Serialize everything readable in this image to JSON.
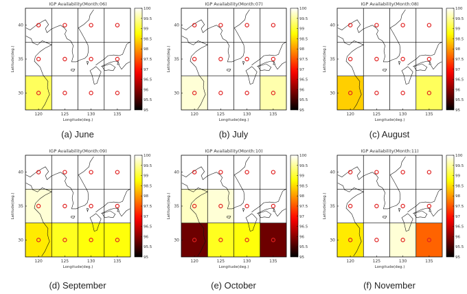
{
  "colorbar": {
    "ticks": [
      "100",
      "99.5",
      "99",
      "98.5",
      "98",
      "97.5",
      "97",
      "96.5",
      "96",
      "95.5",
      "95"
    ],
    "range": [
      95,
      100
    ],
    "colormap": "hot"
  },
  "axes": {
    "xlabel": "Longitude(deg.)",
    "ylabel": "Latitude(deg.)",
    "xticks": [
      120,
      125,
      130,
      135
    ],
    "yticks": [
      40,
      35,
      30
    ]
  },
  "marker_color": "#e02020",
  "chart_data": [
    {
      "type": "heatmap",
      "title": "IGP Availability(Month:06)",
      "caption": "(a)  June",
      "x": [
        120,
        125,
        130,
        135
      ],
      "y": [
        40,
        35,
        30
      ],
      "values": [
        [
          100,
          100,
          100,
          100
        ],
        [
          100,
          100,
          100,
          100
        ],
        [
          99.2,
          100,
          100,
          100
        ]
      ]
    },
    {
      "type": "heatmap",
      "title": "IGP Availability(Month:07)",
      "caption": "(b) July",
      "x": [
        120,
        125,
        130,
        135
      ],
      "y": [
        40,
        35,
        30
      ],
      "values": [
        [
          100,
          100,
          100,
          100
        ],
        [
          100,
          100,
          100,
          100
        ],
        [
          99.8,
          100,
          100,
          99.6
        ]
      ]
    },
    {
      "type": "heatmap",
      "title": "IGP Availability(Month:08)",
      "caption": "(c) August",
      "x": [
        120,
        125,
        130,
        135
      ],
      "y": [
        40,
        35,
        30
      ],
      "values": [
        [
          100,
          100,
          100,
          100
        ],
        [
          100,
          100,
          100,
          100
        ],
        [
          98.4,
          100,
          100,
          99.2
        ]
      ]
    },
    {
      "type": "heatmap",
      "title": "IGP Availability(Month:09)",
      "caption": "(d) September",
      "x": [
        120,
        125,
        130,
        135
      ],
      "y": [
        40,
        35,
        30
      ],
      "values": [
        [
          100,
          100,
          100,
          100
        ],
        [
          99.8,
          100,
          100,
          100
        ],
        [
          98.6,
          98.9,
          98.8,
          98.8
        ]
      ]
    },
    {
      "type": "heatmap",
      "title": "IGP Availability(Month:10)",
      "caption": "(e) October",
      "x": [
        120,
        125,
        130,
        135
      ],
      "y": [
        40,
        35,
        30
      ],
      "values": [
        [
          100,
          100,
          100,
          100
        ],
        [
          99.7,
          99.8,
          100,
          100
        ],
        [
          95.8,
          98.9,
          98.8,
          95.8
        ]
      ]
    },
    {
      "type": "heatmap",
      "title": "IGP Availability(Month:11)",
      "caption": "(f) November",
      "x": [
        120,
        125,
        130,
        135
      ],
      "y": [
        40,
        35,
        30
      ],
      "values": [
        [
          100,
          100,
          100,
          100
        ],
        [
          100,
          100,
          100,
          100
        ],
        [
          98.6,
          100,
          99.8,
          97.6
        ]
      ]
    }
  ]
}
